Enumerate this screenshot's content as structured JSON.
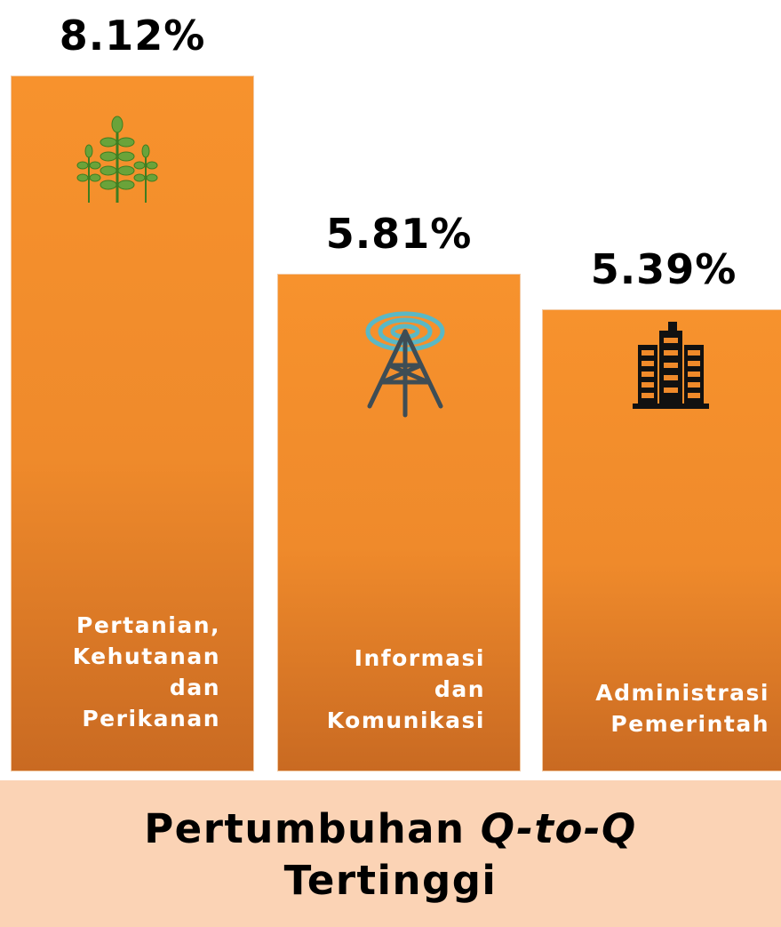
{
  "chart_data": {
    "type": "bar",
    "title": {
      "start": "Pertumbuhan",
      "italic": "Q-to-Q",
      "end": "Tertinggi"
    },
    "categories": [
      "Pertanian,\nKehutanan\ndan\nPerikanan",
      "Informasi\ndan\nKomunikasi",
      "Administrasi\nPemerintah"
    ],
    "values": [
      8.12,
      5.81,
      5.39
    ],
    "value_labels": [
      "8.12%",
      "5.81%",
      "5.39%"
    ],
    "color": "#f7922d"
  }
}
